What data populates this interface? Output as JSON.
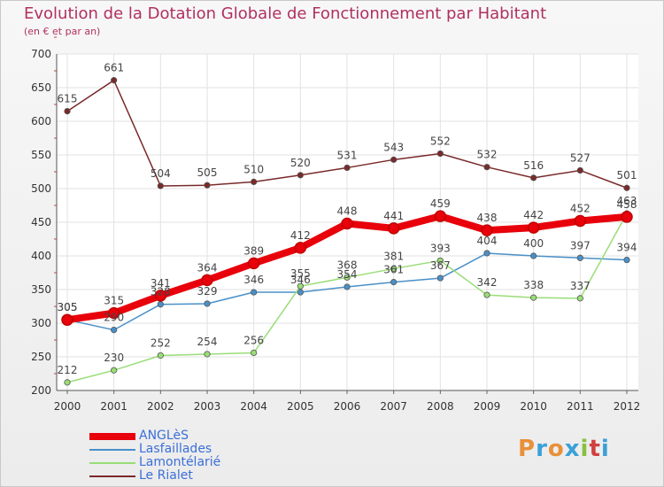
{
  "header": {
    "title": "Evolution de la Dotation Globale de Fonctionnement par Habitant",
    "subtitle": "(en € et par an)"
  },
  "logo": {
    "text": "Proxiti",
    "colors": [
      "#e8903a",
      "#3aa0d8",
      "#e8903a",
      "#3aa0d8",
      "#88c040",
      "#d04040",
      "#3aa0d8"
    ]
  },
  "chart_data": {
    "type": "line",
    "x": [
      "2000",
      "2001",
      "2002",
      "2003",
      "2004",
      "2005",
      "2006",
      "2007",
      "2008",
      "2009",
      "2010",
      "2011",
      "2012"
    ],
    "ylim": [
      200,
      700
    ],
    "yticks": [
      200,
      250,
      300,
      350,
      400,
      450,
      500,
      550,
      600,
      650,
      700
    ],
    "grid": true,
    "legend_position": "bottom-left",
    "series": [
      {
        "name": "ANGLèS",
        "color": "#e8000b",
        "values": [
          305,
          315,
          341,
          364,
          389,
          412,
          448,
          441,
          459,
          438,
          442,
          452,
          458
        ]
      },
      {
        "name": "Lasfaillades",
        "color": "#4a90c8",
        "values": [
          305,
          290,
          328,
          329,
          346,
          346,
          354,
          361,
          367,
          404,
          400,
          397,
          394
        ]
      },
      {
        "name": "Lamontélarié",
        "color": "#99dd77",
        "values": [
          212,
          230,
          252,
          254,
          256,
          355,
          368,
          381,
          393,
          342,
          338,
          337,
          463
        ]
      },
      {
        "name": "Le Rialet",
        "color": "#7a2a2a",
        "values": [
          615,
          661,
          504,
          505,
          510,
          520,
          531,
          543,
          552,
          532,
          516,
          527,
          501
        ]
      }
    ]
  }
}
